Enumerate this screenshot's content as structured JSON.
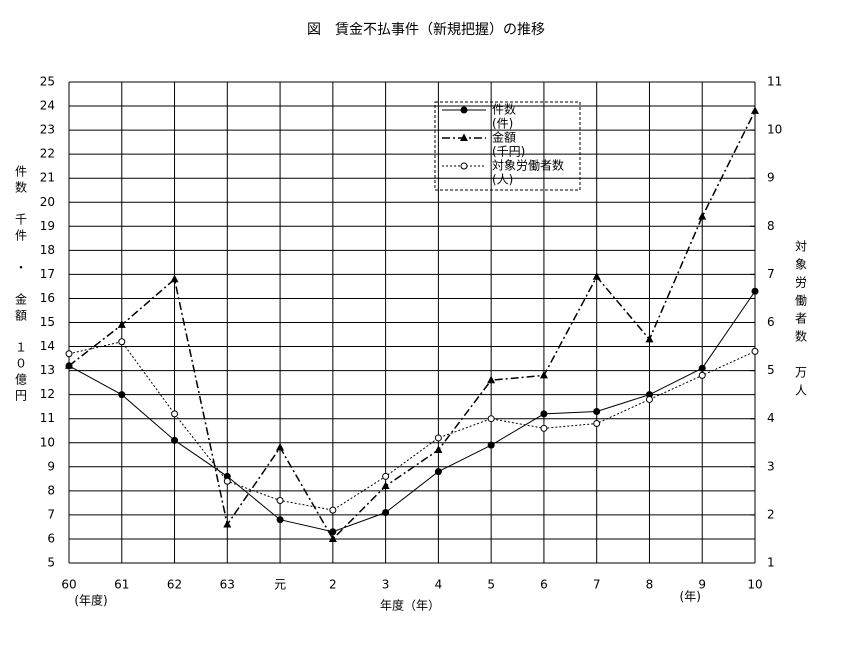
{
  "chart_data": {
    "type": "line",
    "title": "図　賃金不払事件（新規把握）の推移",
    "xlabel": "年度（年）",
    "ylabel": "件数　千件　・　金額　１０億円",
    "y2label": "対象労働者数　万人",
    "x_notes": [
      "(年度)",
      "(年)"
    ],
    "categories": [
      "60",
      "61",
      "62",
      "63",
      "元",
      "2",
      "3",
      "4",
      "5",
      "6",
      "7",
      "8",
      "9",
      "10"
    ],
    "ylim": [
      5,
      25
    ],
    "yticks": [
      5,
      6,
      7,
      8,
      9,
      10,
      11,
      12,
      13,
      14,
      15,
      16,
      17,
      18,
      19,
      20,
      21,
      22,
      23,
      24,
      25
    ],
    "y2lim": [
      1,
      11
    ],
    "y2ticks": [
      1,
      2,
      3,
      4,
      5,
      6,
      7,
      8,
      9,
      10,
      11
    ],
    "grid": true,
    "series": [
      {
        "name": "件数",
        "unit": "(件)",
        "color": "#000000",
        "values": [
          13.2,
          12.0,
          10.1,
          8.6,
          6.8,
          6.3,
          7.1,
          8.8,
          9.9,
          11.2,
          11.3,
          12.0,
          13.1,
          16.3
        ]
      },
      {
        "name": "金額",
        "unit": "(千円)",
        "color": "#000000",
        "values": [
          13.2,
          14.9,
          16.8,
          6.6,
          9.8,
          6.0,
          8.2,
          9.7,
          12.6,
          12.8,
          16.9,
          14.3,
          19.4,
          23.8
        ]
      },
      {
        "name": "対象労働者数",
        "unit": "(人)",
        "color": "#000000",
        "axis": "y2",
        "values": [
          5.35,
          5.6,
          4.1,
          2.7,
          2.3,
          2.1,
          2.8,
          3.6,
          4.0,
          3.8,
          3.9,
          4.4,
          4.9,
          5.4
        ]
      }
    ]
  }
}
